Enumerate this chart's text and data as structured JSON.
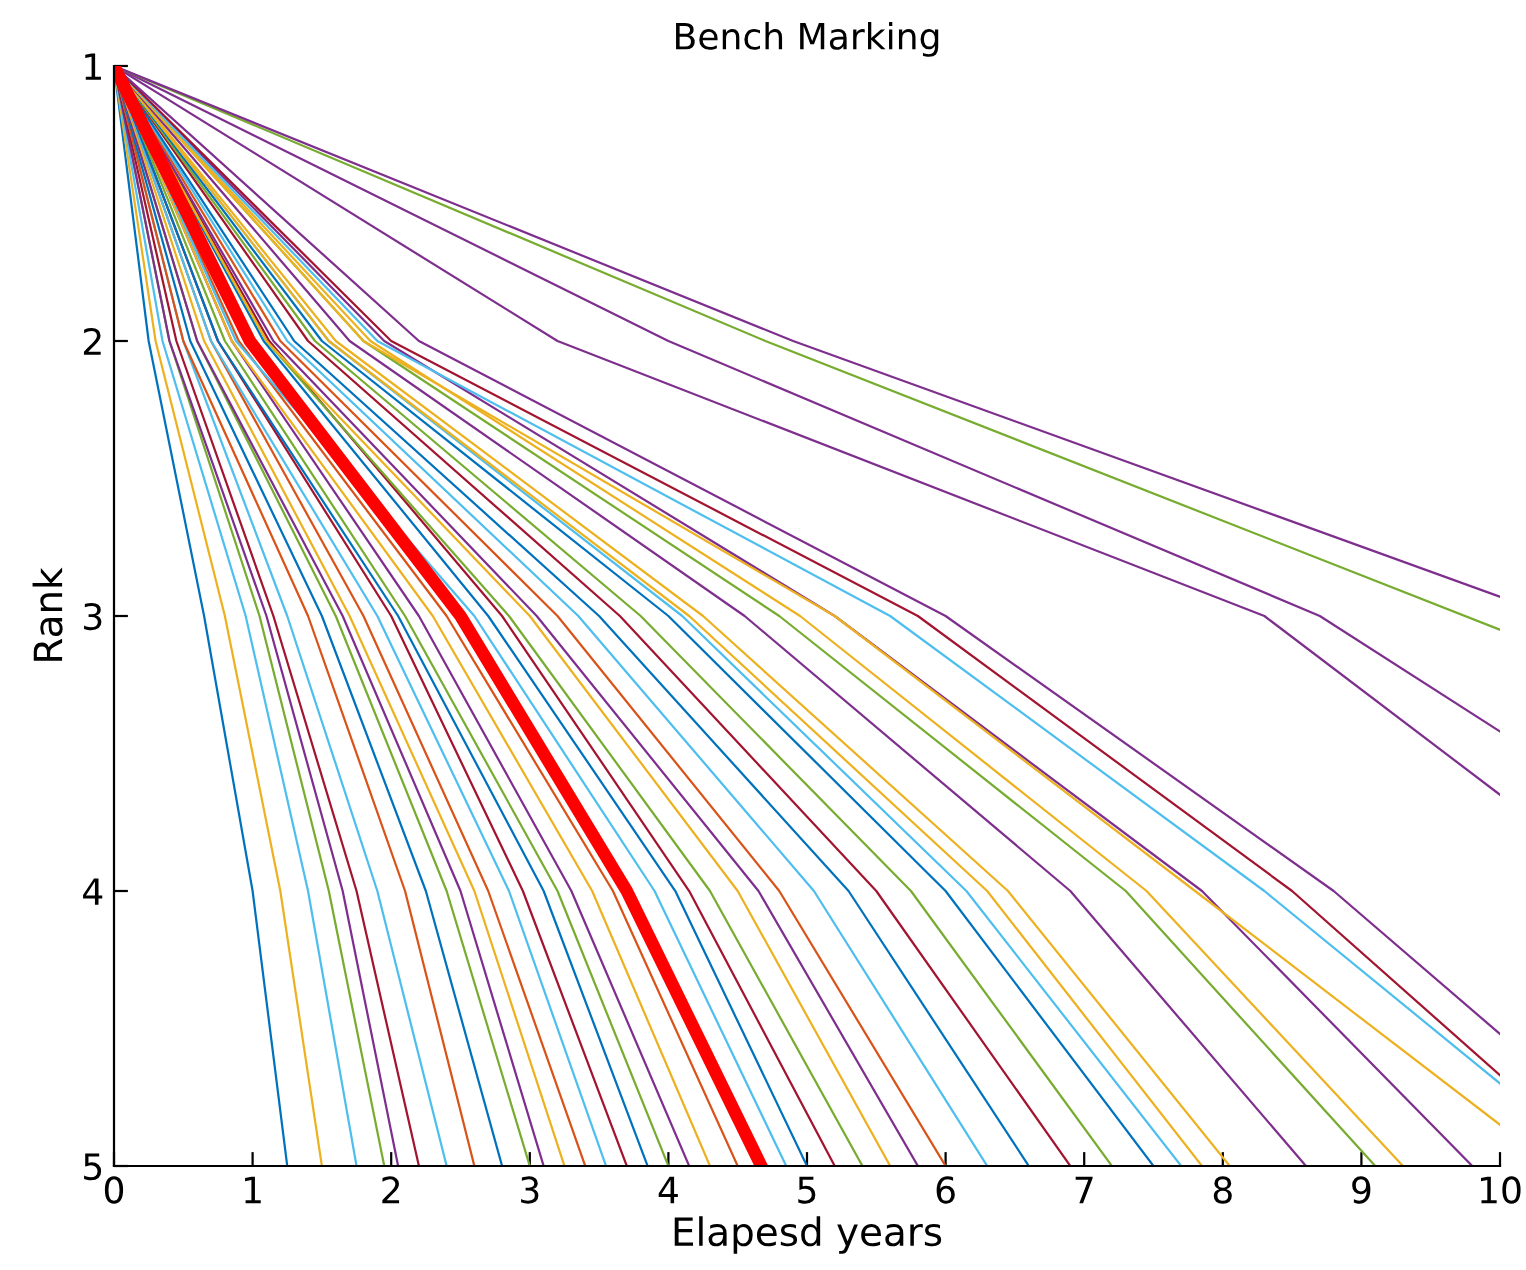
{
  "chart_data": {
    "type": "line",
    "title": "Bench Marking",
    "xlabel": "Elapesd years",
    "ylabel": "Rank",
    "xlim": [
      0,
      10
    ],
    "ylim": [
      5,
      1
    ],
    "xticks": [
      0,
      1,
      2,
      3,
      4,
      5,
      6,
      7,
      8,
      9,
      10
    ],
    "yticks": [
      1,
      2,
      3,
      4,
      5
    ],
    "grid": false,
    "legend": false,
    "marker": "none",
    "line_style": "solid",
    "series": [
      {
        "color": "#0072bd",
        "x": [
          0,
          0.25,
          0.65,
          1.0,
          1.25
        ],
        "values": [
          1,
          2,
          3,
          4,
          5
        ]
      },
      {
        "color": "#edb120",
        "x": [
          0,
          0.3,
          0.8,
          1.2,
          1.5
        ],
        "values": [
          1,
          2,
          3,
          4,
          5
        ]
      },
      {
        "color": "#4dbeee",
        "x": [
          0,
          0.35,
          0.95,
          1.4,
          1.75
        ],
        "values": [
          1,
          2,
          3,
          4,
          5
        ]
      },
      {
        "color": "#77ac30",
        "x": [
          0,
          0.4,
          1.05,
          1.55,
          1.95
        ],
        "values": [
          1,
          2,
          3,
          4,
          5
        ]
      },
      {
        "color": "#7e2f8e",
        "x": [
          0,
          0.4,
          1.1,
          1.65,
          2.05
        ],
        "values": [
          1,
          2,
          3,
          4,
          5
        ]
      },
      {
        "color": "#a2142f",
        "x": [
          0,
          0.45,
          1.15,
          1.75,
          2.2
        ],
        "values": [
          1,
          2,
          3,
          4,
          5
        ]
      },
      {
        "color": "#4dbeee",
        "x": [
          0,
          0.5,
          1.25,
          1.9,
          2.4
        ],
        "values": [
          1,
          2,
          3,
          4,
          5
        ]
      },
      {
        "color": "#d95319",
        "x": [
          0,
          0.5,
          1.4,
          2.1,
          2.6
        ],
        "values": [
          1,
          2,
          3,
          4,
          5
        ]
      },
      {
        "color": "#0072bd",
        "x": [
          0,
          0.55,
          1.5,
          2.25,
          2.8
        ],
        "values": [
          1,
          2,
          3,
          4,
          5
        ]
      },
      {
        "color": "#77ac30",
        "x": [
          0,
          0.6,
          1.6,
          2.4,
          3.0
        ],
        "values": [
          1,
          2,
          3,
          4,
          5
        ]
      },
      {
        "color": "#7e2f8e",
        "x": [
          0,
          0.6,
          1.65,
          2.5,
          3.1
        ],
        "values": [
          1,
          2,
          3,
          4,
          5
        ]
      },
      {
        "color": "#edb120",
        "x": [
          0,
          0.65,
          1.7,
          2.6,
          3.25
        ],
        "values": [
          1,
          2,
          3,
          4,
          5
        ]
      },
      {
        "color": "#d95319",
        "x": [
          0,
          0.7,
          1.8,
          2.7,
          3.4
        ],
        "values": [
          1,
          2,
          3,
          4,
          5
        ]
      },
      {
        "color": "#4dbeee",
        "x": [
          0,
          0.7,
          1.9,
          2.85,
          3.55
        ],
        "values": [
          1,
          2,
          3,
          4,
          5
        ]
      },
      {
        "color": "#a2142f",
        "x": [
          0,
          0.75,
          2.0,
          2.95,
          3.7
        ],
        "values": [
          1,
          2,
          3,
          4,
          5
        ]
      },
      {
        "color": "#0072bd",
        "x": [
          0,
          0.75,
          2.05,
          3.1,
          3.85
        ],
        "values": [
          1,
          2,
          3,
          4,
          5
        ]
      },
      {
        "color": "#77ac30",
        "x": [
          0,
          0.8,
          2.1,
          3.2,
          4.0
        ],
        "values": [
          1,
          2,
          3,
          4,
          5
        ]
      },
      {
        "color": "#7e2f8e",
        "x": [
          0,
          0.85,
          2.2,
          3.3,
          4.15
        ],
        "values": [
          1,
          2,
          3,
          4,
          5
        ]
      },
      {
        "color": "#edb120",
        "x": [
          0,
          0.85,
          2.3,
          3.45,
          4.3
        ],
        "values": [
          1,
          2,
          3,
          4,
          5
        ]
      },
      {
        "color": "#d95319",
        "x": [
          0,
          0.9,
          2.4,
          3.6,
          4.5
        ],
        "values": [
          1,
          2,
          3,
          4,
          5
        ]
      },
      {
        "color": "#4dbeee",
        "x": [
          0,
          0.88,
          2.6,
          3.9,
          4.85
        ],
        "values": [
          1,
          2,
          3,
          4,
          5
        ]
      },
      {
        "color": "#0072bd",
        "x": [
          0,
          1.08,
          2.7,
          4.05,
          5.0
        ],
        "values": [
          1,
          2,
          3,
          4,
          5
        ]
      },
      {
        "color": "#a2142f",
        "x": [
          0,
          1.12,
          2.8,
          4.15,
          5.2
        ],
        "values": [
          1,
          2,
          3,
          4,
          5
        ]
      },
      {
        "color": "#77ac30",
        "x": [
          0,
          1.1,
          2.85,
          4.3,
          5.4
        ],
        "values": [
          1,
          2,
          3,
          4,
          5
        ]
      },
      {
        "color": "#edb120",
        "x": [
          0,
          1.1,
          3.0,
          4.5,
          5.6
        ],
        "values": [
          1,
          2,
          3,
          4,
          5
        ]
      },
      {
        "color": "#7e2f8e",
        "x": [
          0,
          1.15,
          3.05,
          4.65,
          5.8
        ],
        "values": [
          1,
          2,
          3,
          4,
          5
        ]
      },
      {
        "color": "#d95319",
        "x": [
          0,
          1.2,
          3.2,
          4.8,
          6.0
        ],
        "values": [
          1,
          2,
          3,
          4,
          5
        ]
      },
      {
        "color": "#4dbeee",
        "x": [
          0,
          1.25,
          3.35,
          5.05,
          6.3
        ],
        "values": [
          1,
          2,
          3,
          4,
          5
        ]
      },
      {
        "color": "#0072bd",
        "x": [
          0,
          1.3,
          3.5,
          5.3,
          6.6
        ],
        "values": [
          1,
          2,
          3,
          4,
          5
        ]
      },
      {
        "color": "#a2142f",
        "x": [
          0,
          1.4,
          3.65,
          5.5,
          6.9
        ],
        "values": [
          1,
          2,
          3,
          4,
          5
        ]
      },
      {
        "color": "#77ac30",
        "x": [
          0,
          1.45,
          3.8,
          5.75,
          7.2
        ],
        "values": [
          1,
          2,
          3,
          4,
          5
        ]
      },
      {
        "color": "#0072bd",
        "x": [
          0,
          1.5,
          4.0,
          6.0,
          7.5
        ],
        "values": [
          1,
          2,
          3,
          4,
          5
        ]
      },
      {
        "color": "#4dbeee",
        "x": [
          0,
          1.55,
          4.1,
          6.15,
          7.7
        ],
        "values": [
          1,
          2,
          3,
          4,
          5
        ]
      },
      {
        "color": "#edb120",
        "x": [
          0,
          1.55,
          4.15,
          6.3,
          7.85
        ],
        "values": [
          1,
          2,
          3,
          4,
          5
        ]
      },
      {
        "color": "#edb120",
        "x": [
          0,
          1.6,
          4.25,
          6.45,
          8.05
        ],
        "values": [
          1,
          2,
          3,
          4,
          5
        ]
      },
      {
        "color": "#7e2f8e",
        "x": [
          0,
          1.7,
          4.55,
          6.9,
          8.6
        ],
        "values": [
          1,
          2,
          3,
          4,
          5
        ]
      },
      {
        "color": "#77ac30",
        "x": [
          0,
          1.8,
          4.8,
          7.3,
          9.1
        ],
        "values": [
          1,
          2,
          3,
          4,
          5
        ]
      },
      {
        "color": "#edb120",
        "x": [
          0,
          1.85,
          4.95,
          7.45,
          9.3
        ],
        "values": [
          1,
          2,
          3,
          4,
          5
        ]
      },
      {
        "color": "#7e2f8e",
        "x": [
          0,
          1.95,
          5.2,
          7.85,
          9.8
        ],
        "values": [
          1,
          2,
          3,
          4,
          5
        ]
      },
      {
        "color": "#edb120",
        "x": [
          0,
          1.8,
          5.2,
          7.8,
          10
        ],
        "values": [
          1,
          2,
          3,
          4,
          4.85
        ]
      },
      {
        "color": "#4dbeee",
        "x": [
          0,
          1.9,
          5.6,
          8.3,
          10
        ],
        "values": [
          1,
          2,
          3,
          4,
          4.7
        ]
      },
      {
        "color": "#a2142f",
        "x": [
          0,
          2.0,
          5.8,
          8.5,
          10
        ],
        "values": [
          1,
          2,
          3,
          4,
          4.67
        ]
      },
      {
        "color": "#7e2f8e",
        "x": [
          0,
          2.2,
          6.0,
          8.8,
          10
        ],
        "values": [
          1,
          2,
          3,
          4,
          4.52
        ]
      },
      {
        "color": "#7e2f8e",
        "x": [
          0,
          3.2,
          8.3,
          10
        ],
        "values": [
          1,
          2,
          3,
          3.65
        ]
      },
      {
        "color": "#7e2f8e",
        "x": [
          0,
          4.0,
          8.7,
          10
        ],
        "values": [
          1,
          2,
          3,
          3.42
        ]
      },
      {
        "color": "#77ac30",
        "x": [
          0,
          4.7,
          10
        ],
        "values": [
          1,
          2,
          3.05
        ]
      },
      {
        "color": "#7e2f8e",
        "x": [
          0,
          4.9,
          10
        ],
        "values": [
          1,
          2,
          2.93
        ]
      },
      {
        "color": "#ff0000",
        "x": [
          0,
          0.98,
          2.5,
          3.7,
          4.67
        ],
        "values": [
          1,
          2,
          3,
          4,
          5
        ]
      }
    ]
  }
}
